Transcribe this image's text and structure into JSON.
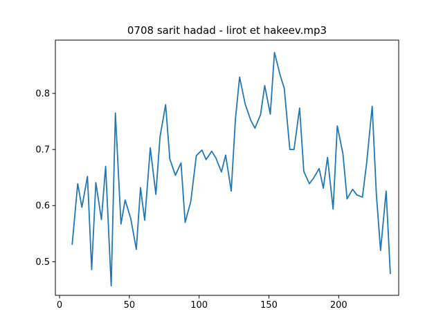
{
  "chart_data": {
    "type": "line",
    "title": "0708 sarit hadad - lirot et hakeev.mp3",
    "xlabel": "",
    "ylabel": "",
    "xlim": [
      -3,
      243
    ],
    "ylim": [
      0.44,
      0.895
    ],
    "xticks": [
      0,
      50,
      100,
      150,
      200
    ],
    "xtick_labels": [
      "0",
      "50",
      "100",
      "150",
      "200"
    ],
    "yticks": [
      0.5,
      0.6,
      0.7,
      0.8
    ],
    "ytick_labels": [
      "0.5",
      "0.6",
      "0.7",
      "0.8"
    ],
    "grid": false,
    "legend": false,
    "series": [
      {
        "color": "#1f77b4",
        "x": [
          9,
          13,
          16,
          20,
          23,
          26,
          30,
          33,
          37,
          40,
          44,
          47,
          51,
          55,
          58,
          61,
          65,
          69,
          72,
          76,
          79,
          83,
          87,
          90,
          94,
          98,
          102,
          105,
          109,
          112,
          116,
          119,
          123,
          126,
          129,
          133,
          137,
          140,
          144,
          147,
          151,
          154,
          158,
          161,
          165,
          168,
          172,
          175,
          179,
          182,
          186,
          189,
          192,
          196,
          199,
          203,
          206,
          210,
          213,
          217,
          220,
          224,
          227,
          230,
          234,
          237
        ],
        "y": [
          0.53,
          0.639,
          0.597,
          0.652,
          0.486,
          0.641,
          0.575,
          0.67,
          0.457,
          0.765,
          0.567,
          0.61,
          0.577,
          0.522,
          0.632,
          0.574,
          0.703,
          0.62,
          0.723,
          0.78,
          0.683,
          0.654,
          0.676,
          0.57,
          0.607,
          0.689,
          0.699,
          0.682,
          0.697,
          0.685,
          0.66,
          0.69,
          0.626,
          0.754,
          0.829,
          0.781,
          0.752,
          0.738,
          0.762,
          0.814,
          0.763,
          0.873,
          0.833,
          0.809,
          0.7,
          0.7,
          0.774,
          0.661,
          0.639,
          0.649,
          0.666,
          0.631,
          0.686,
          0.594,
          0.742,
          0.693,
          0.612,
          0.629,
          0.619,
          0.615,
          0.675,
          0.777,
          0.62,
          0.52,
          0.626,
          0.478
        ]
      }
    ]
  }
}
